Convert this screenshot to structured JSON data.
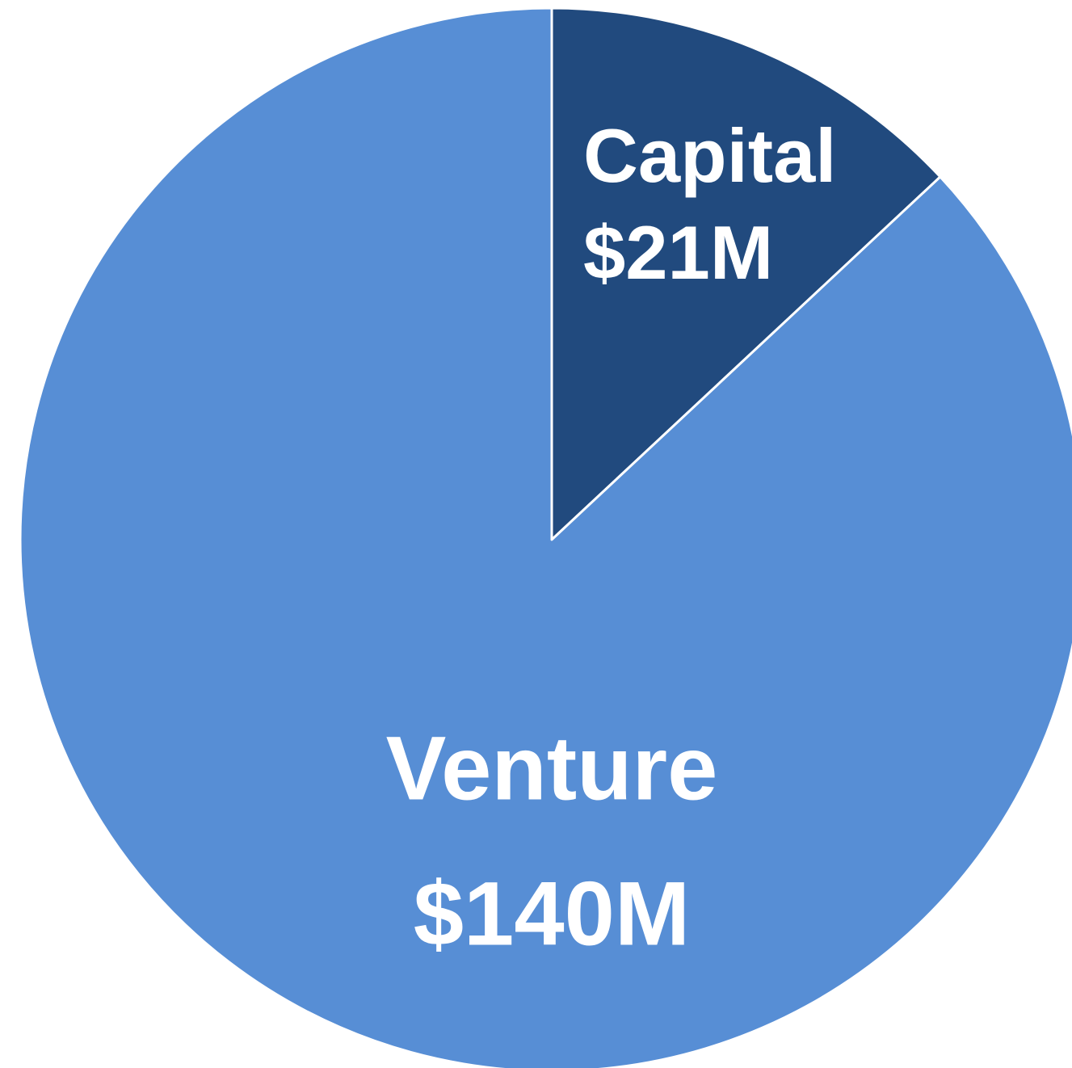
{
  "chart_data": {
    "type": "pie",
    "categories": [
      "Capital",
      "Venture"
    ],
    "values": [
      21,
      140
    ],
    "value_labels": [
      "$21M",
      "$140M"
    ],
    "colors": [
      "#214a7e",
      "#578ed5"
    ]
  }
}
